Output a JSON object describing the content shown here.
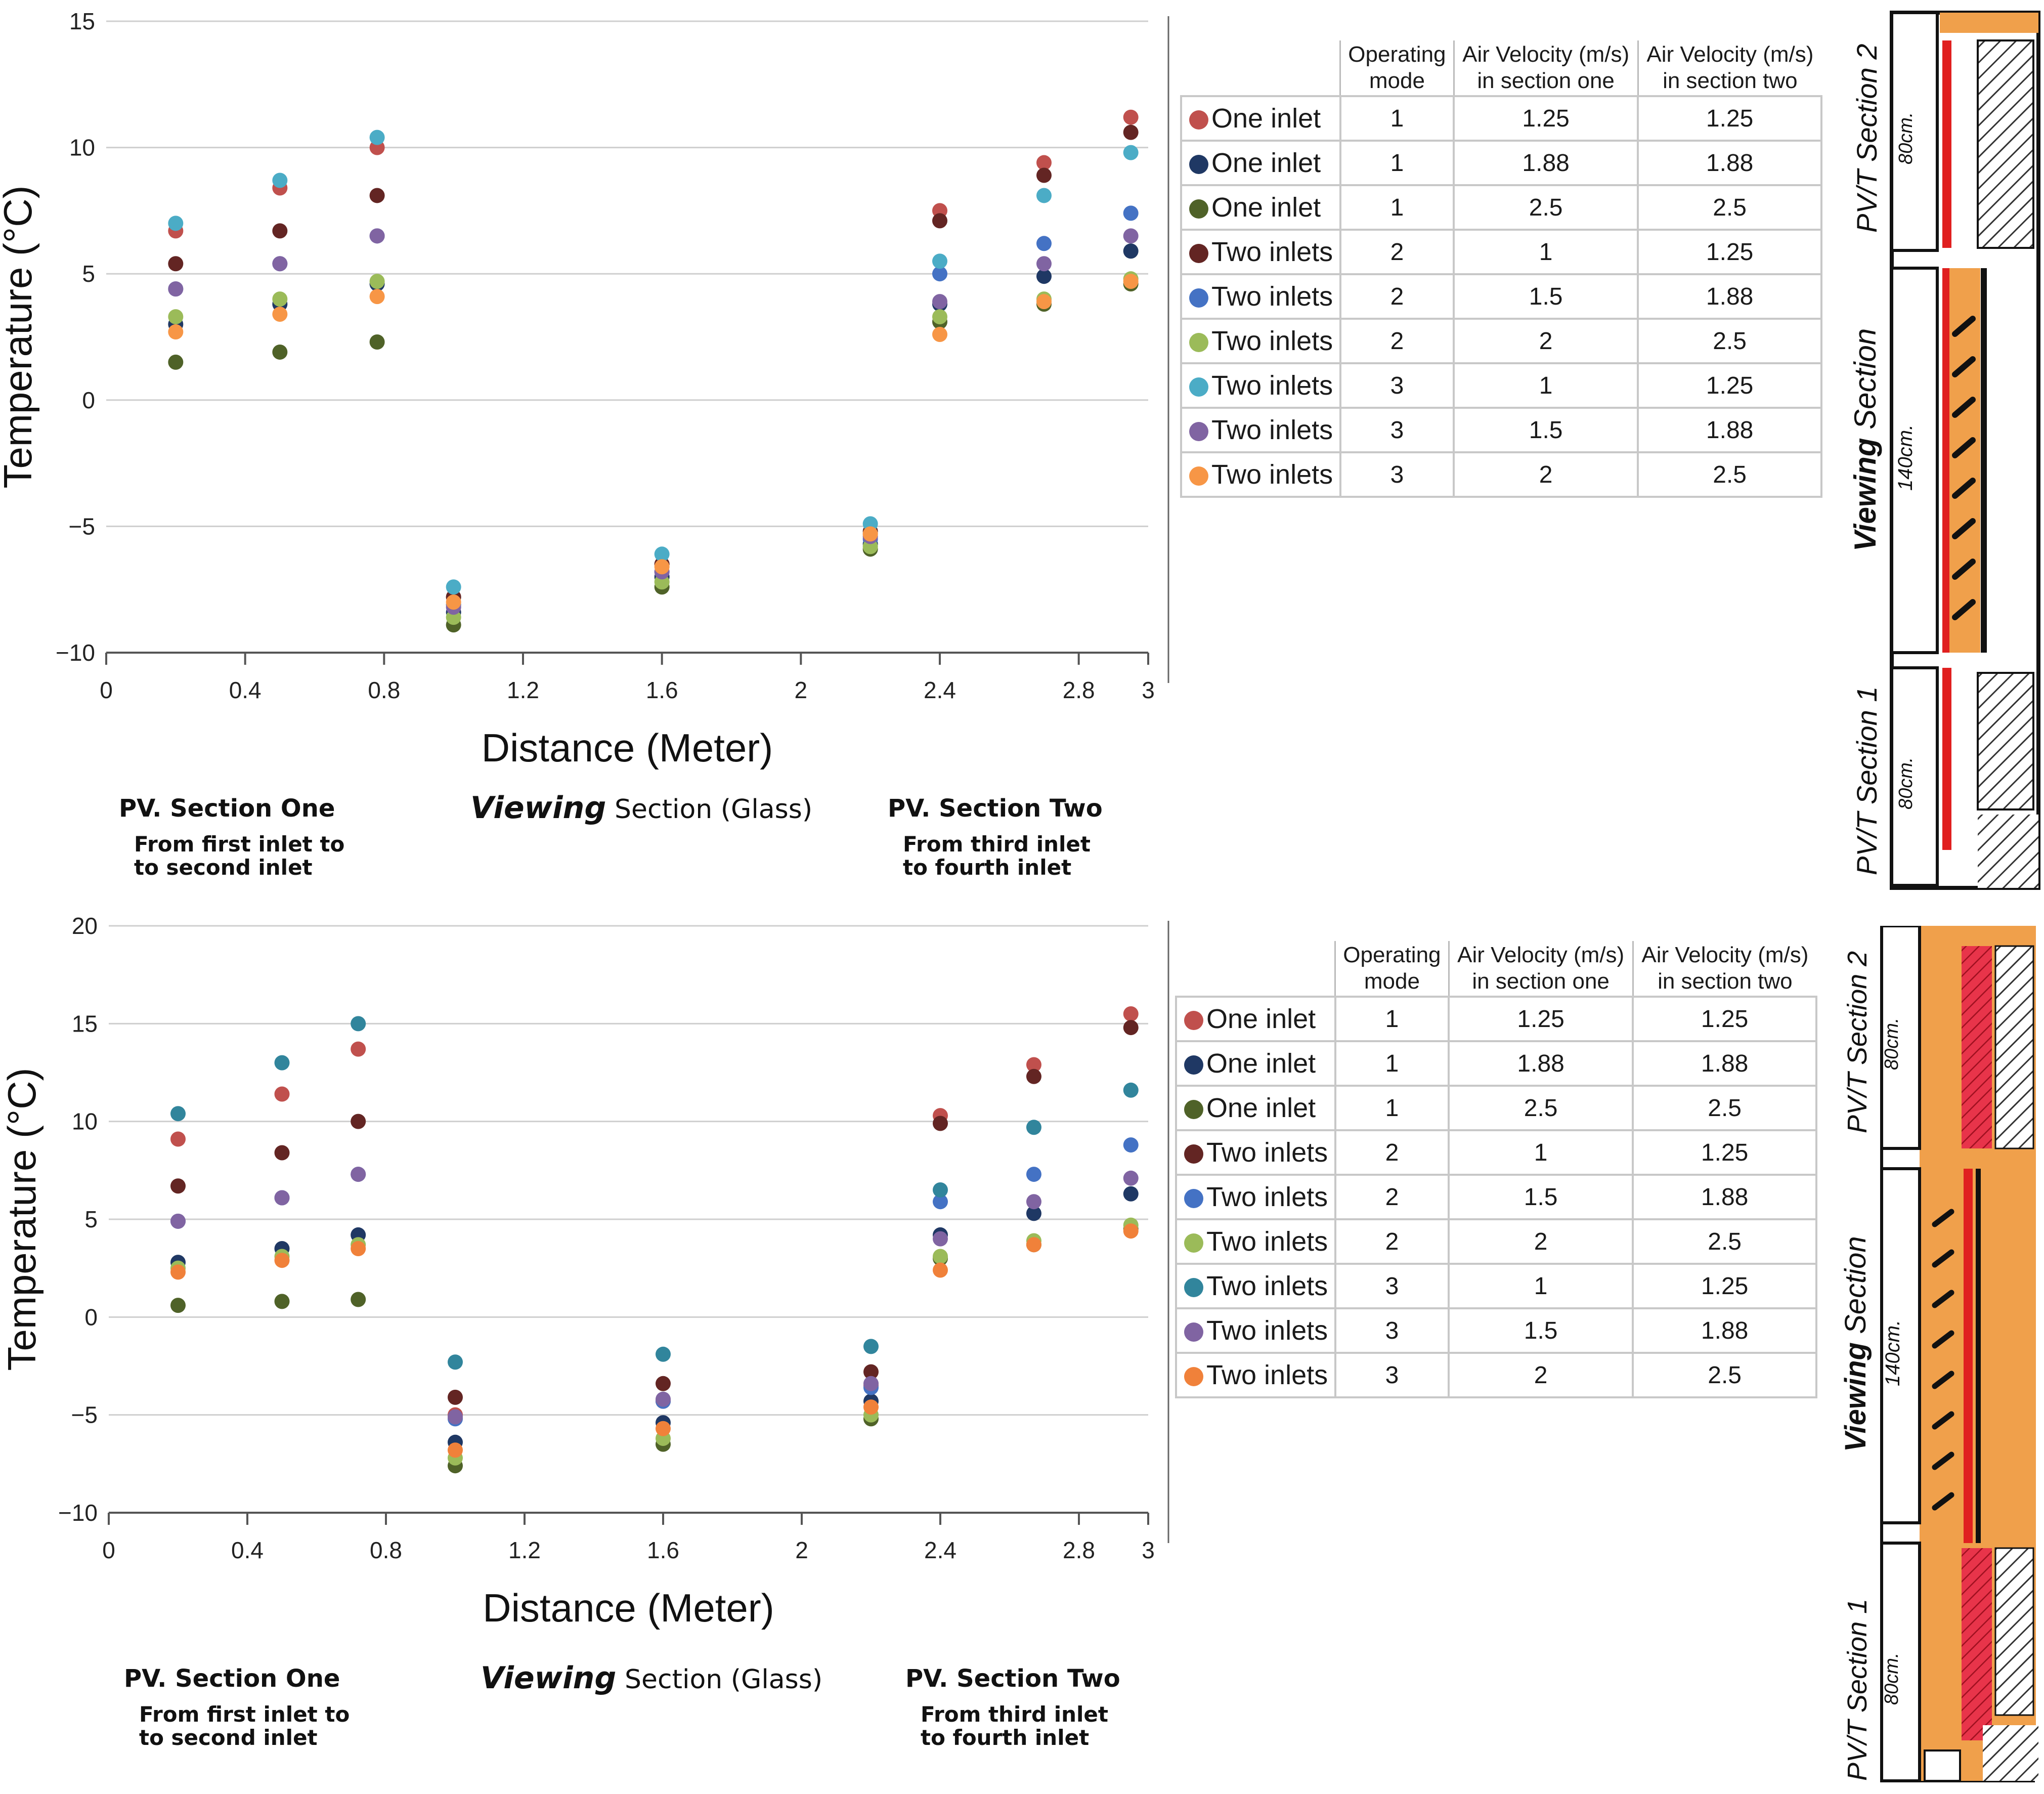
{
  "chart_data": [
    {
      "type": "scatter",
      "title": "",
      "xlabel": "Distance (Meter)",
      "ylabel": "Temperature (°C)",
      "ylabel_unit_prefix": "o",
      "xlim": [
        0,
        3
      ],
      "ylim": [
        -10,
        15
      ],
      "xticks": [
        "0",
        "0.4",
        "0.8",
        "1.2",
        "1.6",
        "2",
        "2.4",
        "2.8",
        "3"
      ],
      "yticks": [
        "15",
        "10",
        "5",
        "0",
        "−5",
        "−10"
      ],
      "ytick_values": [
        15,
        10,
        5,
        0,
        -5,
        -10
      ],
      "x": [
        0.2,
        0.5,
        0.78,
        1.0,
        1.6,
        2.2,
        2.4,
        2.7,
        2.95
      ],
      "series": [
        {
          "name": "One inlet (1.25)",
          "color": "#c0504d",
          "values": [
            6.7,
            8.4,
            10.0,
            -7.8,
            -6.5,
            -5.3,
            7.5,
            9.4,
            11.2
          ]
        },
        {
          "name": "One inlet (1.88)",
          "color": "#1f3864",
          "values": [
            3.0,
            3.8,
            4.6,
            -8.4,
            -7.0,
            -5.7,
            3.8,
            4.9,
            5.9
          ]
        },
        {
          "name": "One inlet (2.5)",
          "color": "#4f6228",
          "values": [
            1.5,
            1.9,
            2.3,
            -8.9,
            -7.4,
            -5.9,
            3.1,
            3.8,
            4.6
          ]
        },
        {
          "name": "Two inlets mode 2 (1.25)",
          "color": "#632523",
          "values": [
            5.4,
            6.7,
            8.1,
            -7.8,
            -6.5,
            -5.2,
            7.1,
            8.9,
            10.6
          ]
        },
        {
          "name": "Two inlets mode 2 (1.88)",
          "color": "#4472c4",
          "values": [
            4.4,
            5.4,
            6.5,
            -8.1,
            -6.8,
            -5.5,
            5.0,
            6.2,
            7.4
          ]
        },
        {
          "name": "Two inlets mode 2 (2.5)",
          "color": "#9bbb59",
          "values": [
            3.3,
            4.0,
            4.7,
            -8.6,
            -7.2,
            -5.8,
            3.3,
            4.0,
            4.8
          ]
        },
        {
          "name": "Two inlets mode 3 (1.25)",
          "color": "#4bacc6",
          "values": [
            7.0,
            8.7,
            10.4,
            -7.4,
            -6.1,
            -4.9,
            5.5,
            8.1,
            9.8
          ]
        },
        {
          "name": "Two inlets mode 3 (1.88)",
          "color": "#8064a2",
          "values": [
            4.4,
            5.4,
            6.5,
            -8.2,
            -6.8,
            -5.4,
            3.9,
            5.4,
            6.5
          ]
        },
        {
          "name": "Two inlets mode 3 (2.5)",
          "color": "#f79646",
          "values": [
            2.7,
            3.4,
            4.1,
            -8.0,
            -6.6,
            -5.3,
            2.6,
            3.9,
            4.7
          ]
        }
      ]
    },
    {
      "type": "scatter",
      "title": "",
      "xlabel": "Distance (Meter)",
      "ylabel": "Temperature (°C)",
      "ylabel_unit_prefix": "o",
      "xlim": [
        0,
        3
      ],
      "ylim": [
        -10,
        20
      ],
      "xticks": [
        "0",
        "0.4",
        "0.8",
        "1.2",
        "1.6",
        "2",
        "2.4",
        "2.8",
        "3"
      ],
      "yticks": [
        "20",
        "15",
        "10",
        "5",
        "0",
        "−5",
        "−10"
      ],
      "ytick_values": [
        20,
        15,
        10,
        5,
        0,
        -5,
        -10
      ],
      "x": [
        0.2,
        0.5,
        0.72,
        1.0,
        1.6,
        2.2,
        2.4,
        2.67,
        2.95
      ],
      "series": [
        {
          "name": "One inlet (1.25)",
          "color": "#c0504d",
          "values": [
            9.1,
            11.4,
            13.7,
            -5.0,
            -4.3,
            -3.5,
            10.3,
            12.9,
            15.5
          ]
        },
        {
          "name": "One inlet (1.88)",
          "color": "#1f3864",
          "values": [
            2.8,
            3.5,
            4.2,
            -6.4,
            -5.4,
            -4.3,
            4.2,
            5.3,
            6.3
          ]
        },
        {
          "name": "One inlet (2.5)",
          "color": "#4f6228",
          "values": [
            0.6,
            0.8,
            0.9,
            -7.6,
            -6.5,
            -5.2,
            3.0,
            3.7,
            4.5
          ]
        },
        {
          "name": "Two inlets mode 2 (1.25)",
          "color": "#632523",
          "values": [
            6.7,
            8.4,
            10.0,
            -4.1,
            -3.4,
            -2.8,
            9.9,
            12.3,
            14.8
          ]
        },
        {
          "name": "Two inlets mode 2 (1.88)",
          "color": "#4472c4",
          "values": [
            4.9,
            6.1,
            7.3,
            -5.2,
            -4.3,
            -3.6,
            5.9,
            7.3,
            8.8
          ]
        },
        {
          "name": "Two inlets mode 2 (2.5)",
          "color": "#9bbb59",
          "values": [
            2.5,
            3.1,
            3.7,
            -7.2,
            -6.2,
            -5.0,
            3.1,
            3.9,
            4.7
          ]
        },
        {
          "name": "Two inlets mode 3 (1.25)",
          "color": "#31859c",
          "values": [
            10.4,
            13.0,
            15.0,
            -2.3,
            -1.9,
            -1.5,
            6.5,
            9.7,
            11.6
          ]
        },
        {
          "name": "Two inlets mode 3 (1.88)",
          "color": "#8064a2",
          "values": [
            4.9,
            6.1,
            7.3,
            -5.1,
            -4.2,
            -3.4,
            4.0,
            5.9,
            7.1
          ]
        },
        {
          "name": "Two inlets mode 3 (2.5)",
          "color": "#f0813a",
          "values": [
            2.3,
            2.9,
            3.5,
            -6.8,
            -5.7,
            -4.6,
            2.4,
            3.7,
            4.4
          ]
        }
      ]
    }
  ],
  "sections": {
    "pv_one": {
      "title": "PV. Section One",
      "line1": "From first inlet to",
      "line2": "to second inlet"
    },
    "viewing": {
      "emph": "Viewing",
      "rest": "Section (Glass)"
    },
    "pv_two": {
      "title": "PV. Section Two",
      "line1": "From third inlet",
      "line2": "to fourth inlet"
    }
  },
  "legend_table": {
    "headers": {
      "mode_l1": "Operating",
      "mode_l2": "mode",
      "v1_l1": "Air Velocity (m/s)",
      "v1_l2": "in section one",
      "v2_l1": "Air Velocity (m/s)",
      "v2_l2": "in section two"
    },
    "rows": [
      {
        "name": "One inlet",
        "mode": "1",
        "v1": "1.25",
        "v2": "1.25"
      },
      {
        "name": "One inlet",
        "mode": "1",
        "v1": "1.88",
        "v2": "1.88"
      },
      {
        "name": "One inlet",
        "mode": "1",
        "v1": "2.5",
        "v2": "2.5"
      },
      {
        "name": "Two inlets",
        "mode": "2",
        "v1": "1",
        "v2": "1.25"
      },
      {
        "name": "Two inlets",
        "mode": "2",
        "v1": "1.5",
        "v2": "1.88"
      },
      {
        "name": "Two inlets",
        "mode": "2",
        "v1": "2",
        "v2": "2.5"
      },
      {
        "name": "Two inlets",
        "mode": "3",
        "v1": "1",
        "v2": "1.25"
      },
      {
        "name": "Two inlets",
        "mode": "3",
        "v1": "1.5",
        "v2": "1.88"
      },
      {
        "name": "Two inlets",
        "mode": "3",
        "v1": "2",
        "v2": "2.5"
      }
    ]
  },
  "diagram": {
    "section2_name": "PV/T Section 2",
    "section2_size": "80cm.",
    "viewing_name_emph": "Viewing",
    "viewing_name_rest": "Section",
    "viewing_size": "140cm.",
    "section1_name": "PV/T Section 1",
    "section1_size": "80cm."
  },
  "colors": {
    "grid": "#cfcfcf",
    "axis": "#555555",
    "frame_red": "#e02020",
    "frame_orange": "#f0a04b"
  }
}
